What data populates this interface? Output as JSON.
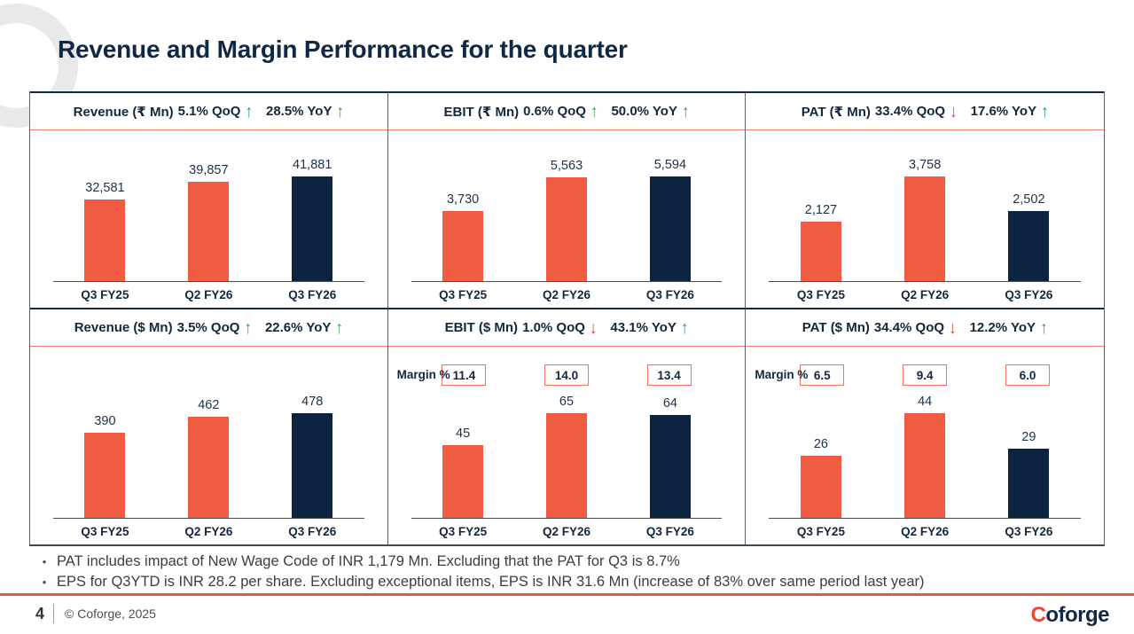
{
  "title": "Revenue and Margin Performance for the quarter",
  "colors": {
    "navy": "#0d2440",
    "salmon": "#f05b41",
    "green_up": "#1fa84d",
    "red_down": "#e23a22",
    "footer_line": "#e8573e"
  },
  "icons": {
    "up-arrow": "↑",
    "down-arrow": "↓",
    "bullet": "•"
  },
  "chart_data": [
    {
      "type": "bar",
      "title": "Revenue (₹ Mn)",
      "qoq_label": "5.1% QoQ",
      "qoq_dir": "up",
      "yoy_label": "28.5% YoY",
      "yoy_dir": "up",
      "categories": [
        "Q3 FY25",
        "Q2 FY26",
        "Q3 FY26"
      ],
      "values": [
        32581,
        39857,
        41881
      ],
      "value_labels": [
        "32,581",
        "39,857",
        "41,881"
      ],
      "bar_colors": [
        "salmon",
        "salmon",
        "navy"
      ]
    },
    {
      "type": "bar",
      "title": "EBIT (₹ Mn)",
      "qoq_label": "0.6% QoQ",
      "qoq_dir": "up",
      "yoy_label": "50.0% YoY",
      "yoy_dir": "up",
      "categories": [
        "Q3 FY25",
        "Q2 FY26",
        "Q3 FY26"
      ],
      "values": [
        3730,
        5563,
        5594
      ],
      "value_labels": [
        "3,730",
        "5,563",
        "5,594"
      ],
      "bar_colors": [
        "salmon",
        "salmon",
        "navy"
      ]
    },
    {
      "type": "bar",
      "title": "PAT (₹ Mn)",
      "qoq_label": "33.4% QoQ",
      "qoq_dir": "down",
      "yoy_label": "17.6% YoY",
      "yoy_dir": "up",
      "categories": [
        "Q3 FY25",
        "Q2 FY26",
        "Q3 FY26"
      ],
      "values": [
        2127,
        3758,
        2502
      ],
      "value_labels": [
        "2,127",
        "3,758",
        "2,502"
      ],
      "bar_colors": [
        "salmon",
        "salmon",
        "navy"
      ]
    },
    {
      "type": "bar",
      "title": "Revenue ($ Mn)",
      "qoq_label": "3.5% QoQ",
      "qoq_dir": "up",
      "yoy_label": "22.6% YoY",
      "yoy_dir": "up",
      "categories": [
        "Q3 FY25",
        "Q2 FY26",
        "Q3 FY26"
      ],
      "values": [
        390,
        462,
        478
      ],
      "value_labels": [
        "390",
        "462",
        "478"
      ],
      "bar_colors": [
        "salmon",
        "salmon",
        "navy"
      ]
    },
    {
      "type": "bar",
      "title": "EBIT ($ Mn)",
      "qoq_label": "1.0% QoQ",
      "qoq_dir": "down",
      "yoy_label": "43.1% YoY",
      "yoy_dir": "up",
      "categories": [
        "Q3 FY25",
        "Q2 FY26",
        "Q3 FY26"
      ],
      "values": [
        45,
        65,
        64
      ],
      "value_labels": [
        "45",
        "65",
        "64"
      ],
      "bar_colors": [
        "salmon",
        "salmon",
        "navy"
      ],
      "margin": {
        "label": "Margin %",
        "values": [
          "11.4",
          "14.0",
          "13.4"
        ]
      }
    },
    {
      "type": "bar",
      "title": "PAT ($ Mn)",
      "qoq_label": "34.4% QoQ",
      "qoq_dir": "down",
      "yoy_label": "12.2% YoY",
      "yoy_dir": "up",
      "categories": [
        "Q3 FY25",
        "Q2 FY26",
        "Q3 FY26"
      ],
      "values": [
        26,
        44,
        29
      ],
      "value_labels": [
        "26",
        "44",
        "29"
      ],
      "bar_colors": [
        "salmon",
        "salmon",
        "navy"
      ],
      "margin": {
        "label": "Margin %",
        "values": [
          "6.5",
          "9.4",
          "6.0"
        ]
      }
    }
  ],
  "notes": [
    "PAT includes impact of New Wage Code of INR 1,179 Mn. Excluding that the PAT for Q3 is 8.7%",
    "EPS for Q3YTD is INR 28.2 per share. Excluding exceptional items, EPS is INR 31.6 Mn (increase of 83% over same period last year)"
  ],
  "footer": {
    "page": "4",
    "copyright": "© Coforge, 2025",
    "logo": {
      "c": "C",
      "rest": "oforge"
    }
  }
}
